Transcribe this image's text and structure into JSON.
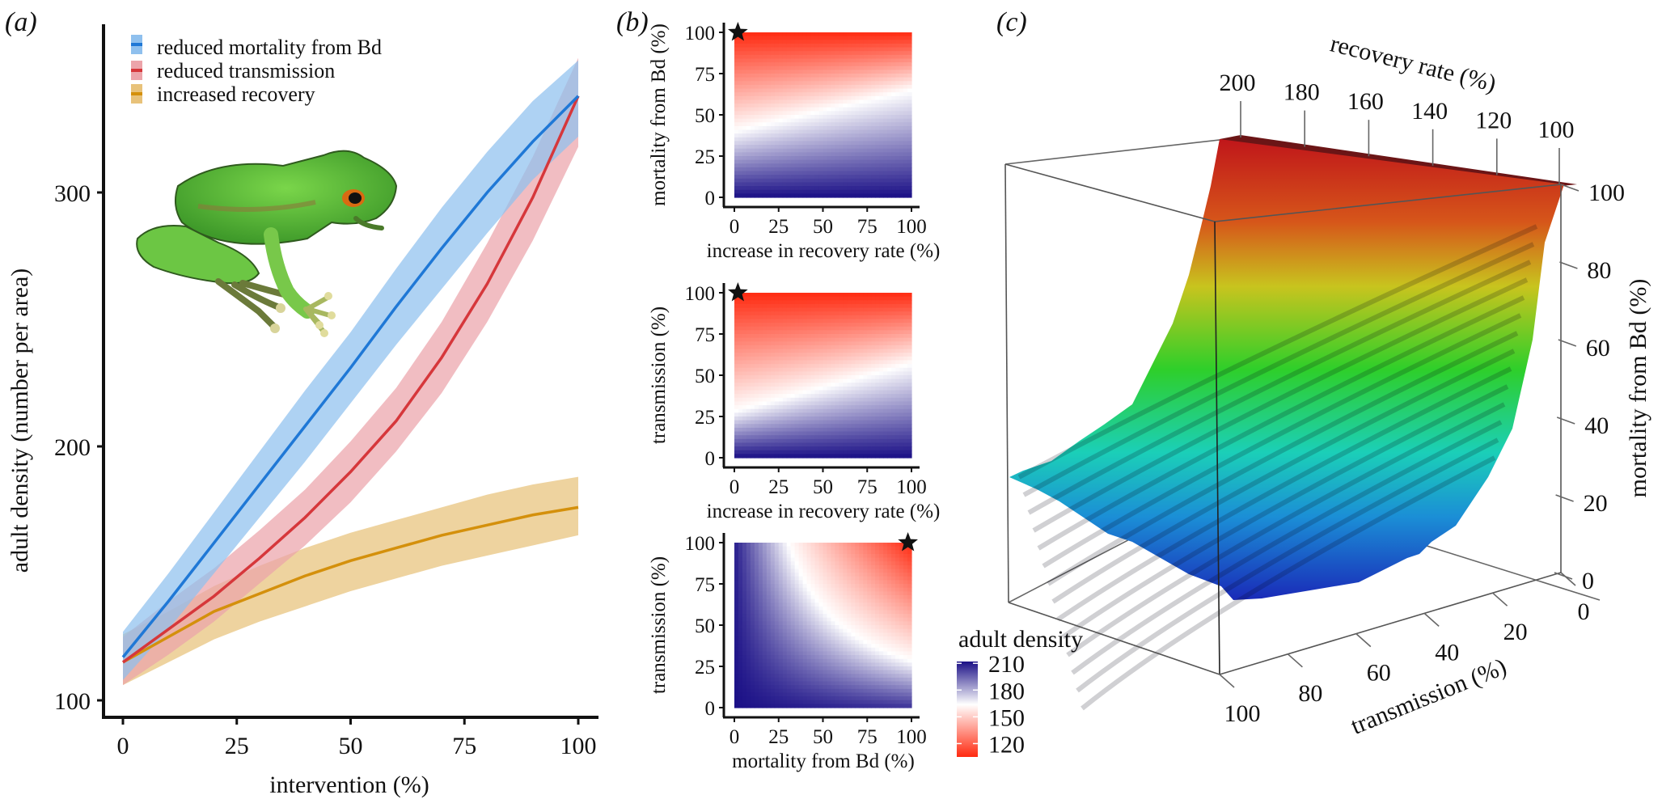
{
  "chart_data": [
    {
      "panel_label": "(a)",
      "type": "line",
      "title": "",
      "xlabel": "intervention (%)",
      "ylabel": "adult density (number per area)",
      "xlim": [
        0,
        100
      ],
      "ylim": [
        92,
        355
      ],
      "xticks": [
        0,
        25,
        50,
        75,
        100
      ],
      "yticks": [
        100,
        200,
        300
      ],
      "grid": false,
      "legend_position": "top-left",
      "illustration": "green tree frog",
      "x": [
        0,
        10,
        20,
        30,
        40,
        50,
        60,
        70,
        80,
        90,
        100
      ],
      "series": [
        {
          "name": "reduced mortality from Bd",
          "color": "#1f78d6",
          "band_color": "#8fc0ee",
          "values": [
            117,
            139,
            162,
            185,
            208,
            231,
            255,
            278,
            300,
            320,
            338
          ],
          "lower": [
            108,
            128,
            150,
            172,
            194,
            217,
            240,
            262,
            284,
            305,
            322
          ],
          "upper": [
            127,
            150,
            174,
            198,
            222,
            245,
            270,
            294,
            316,
            336,
            352
          ]
        },
        {
          "name": "reduced transmission",
          "color": "#d6373b",
          "band_color": "#eca4aa",
          "values": [
            115,
            128,
            141,
            156,
            172,
            190,
            210,
            235,
            264,
            298,
            338
          ],
          "lower": [
            106,
            118,
            131,
            146,
            161,
            178,
            198,
            221,
            249,
            281,
            318
          ],
          "upper": [
            125,
            139,
            152,
            167,
            183,
            202,
            223,
            249,
            280,
            314,
            353
          ]
        },
        {
          "name": "increased recovery",
          "color": "#d4900c",
          "band_color": "#e8c27a",
          "values": [
            115,
            125,
            135,
            142,
            149,
            155,
            160,
            165,
            169,
            173,
            176
          ],
          "lower": [
            106,
            115,
            124,
            131,
            137,
            143,
            148,
            153,
            157,
            161,
            165
          ],
          "upper": [
            126,
            135,
            145,
            153,
            160,
            166,
            171,
            176,
            181,
            185,
            188
          ]
        }
      ]
    },
    {
      "panel_label": "(b)",
      "type": "heatmap",
      "subplots": [
        {
          "xlabel": "increase in recovery rate (%)",
          "ylabel": "mortality from Bd (%)",
          "xlim": [
            0,
            100
          ],
          "ylim": [
            0,
            100
          ],
          "xticks": [
            0,
            25,
            50,
            75,
            100
          ],
          "yticks": [
            0,
            25,
            50,
            75,
            100
          ],
          "star": {
            "x": 2,
            "y": 100
          },
          "description": "density decreases with mortality; white contour (~150) runs from mortality ~40 at recovery 0 to ~65 at recovery 100",
          "contour_150": [
            [
              0,
              40
            ],
            [
              100,
              65
            ]
          ]
        },
        {
          "xlabel": "increase in recovery rate (%)",
          "ylabel": "transmission (%)",
          "xlim": [
            0,
            100
          ],
          "ylim": [
            0,
            100
          ],
          "xticks": [
            0,
            25,
            50,
            75,
            100
          ],
          "yticks": [
            0,
            25,
            50,
            75,
            100
          ],
          "star": {
            "x": 2,
            "y": 100
          },
          "description": "density decreases with transmission; white contour (~150) runs from transmission ~28 at recovery 0 to ~57 at recovery 100",
          "contour_150": [
            [
              0,
              28
            ],
            [
              100,
              57
            ]
          ]
        },
        {
          "xlabel": "mortality from Bd (%)",
          "ylabel": "transmission (%)",
          "xlim": [
            0,
            100
          ],
          "ylim": [
            0,
            100
          ],
          "xticks": [
            0,
            25,
            50,
            75,
            100
          ],
          "yticks": [
            0,
            25,
            50,
            75,
            100
          ],
          "star": {
            "x": 98,
            "y": 100
          },
          "description": "hyperbolic white contour from (43,100) to (100,30); low density (red) at upper-right",
          "contour_150": [
            [
              43,
              100
            ],
            [
              55,
              75
            ],
            [
              70,
              50
            ],
            [
              100,
              30
            ]
          ]
        }
      ],
      "colorbar": {
        "title": "adult density",
        "ticks": [
          210,
          180,
          150,
          120
        ],
        "range": [
          105,
          212
        ],
        "colors": {
          "high": "#1a0f86",
          "mid": "#ffffff",
          "low": "#ff2a10"
        }
      }
    },
    {
      "panel_label": "(c)",
      "type": "surface3d",
      "axes": {
        "recovery": {
          "label": "recovery rate (%)",
          "ticks": [
            200,
            180,
            160,
            140,
            120,
            100
          ]
        },
        "mortality": {
          "label": "mortality from Bd (%)",
          "ticks": [
            0,
            20,
            40,
            60,
            80,
            100
          ]
        },
        "transmission": {
          "label": "transmission (%)",
          "ticks": [
            100,
            80,
            60,
            40,
            20,
            0
          ]
        }
      },
      "colormap": "rainbow (blue low → red high)",
      "description": "surface rises steeply toward high mortality and low transmission; plateau at 100 along top edge"
    }
  ],
  "labels": {
    "a": "(a)",
    "b": "(b)",
    "c": "(c)"
  }
}
